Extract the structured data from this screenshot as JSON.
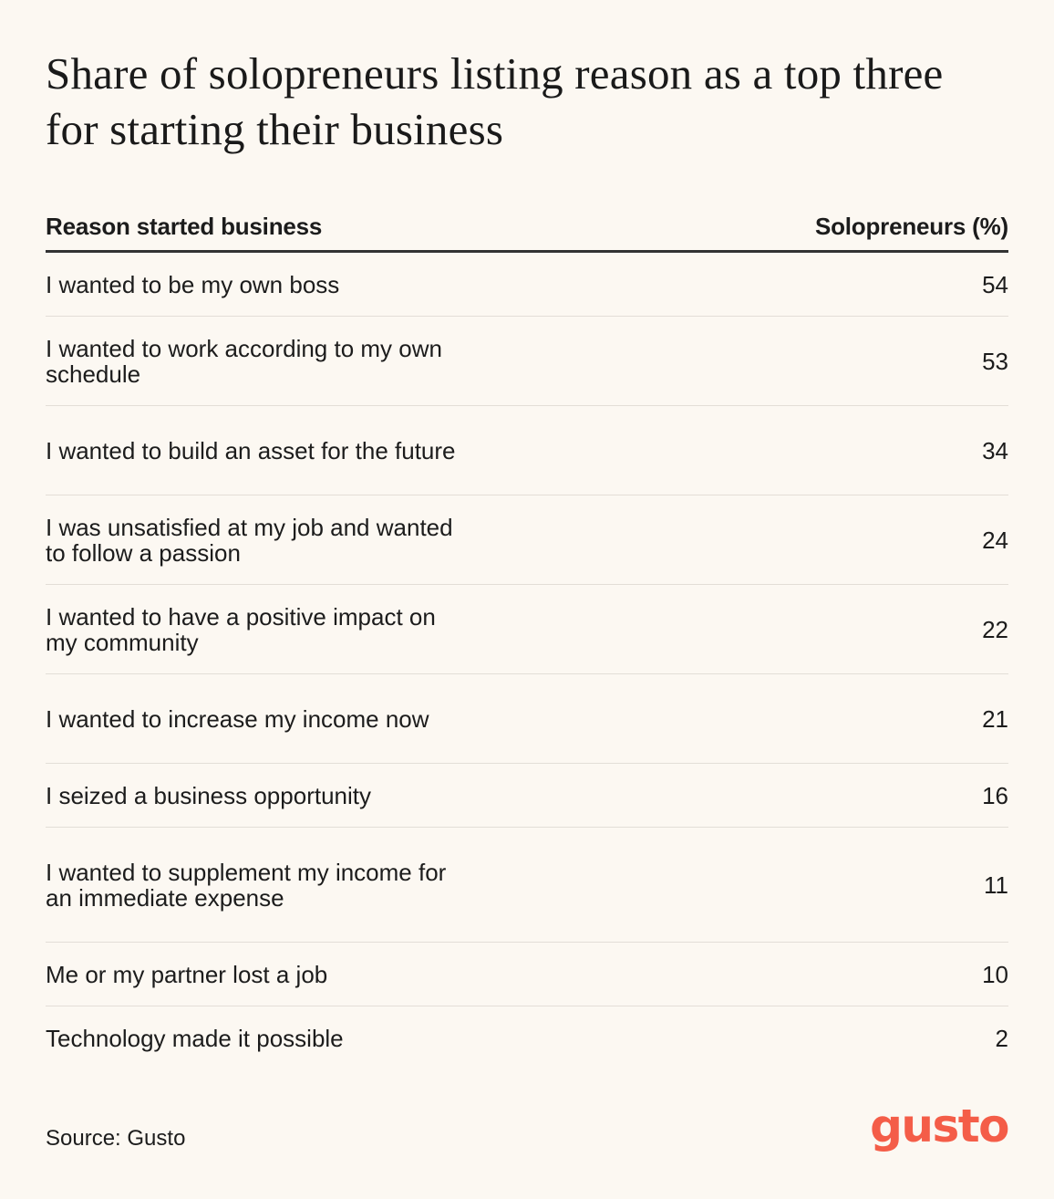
{
  "title": "Share of solopreneurs listing reason as a top three for starting their business",
  "source": "Source: Gusto",
  "logo_text": "gusto",
  "colors": {
    "background": "#fcf8f2",
    "text": "#1c1c1c",
    "brand": "#f45d48"
  },
  "chart_data": {
    "type": "table",
    "columns": [
      "Reason started business",
      "Solopreneurs (%)"
    ],
    "rows": [
      {
        "reason": "I wanted to be my own boss",
        "value": 54
      },
      {
        "reason": "I wanted to work according to my own schedule",
        "value": 53
      },
      {
        "reason": "I wanted to build an asset for the future",
        "value": 34
      },
      {
        "reason": "I was unsatisfied at my job and wanted to follow a passion",
        "value": 24
      },
      {
        "reason": "I wanted to have a positive impact on my community",
        "value": 22
      },
      {
        "reason": "I wanted to increase my income now",
        "value": 21
      },
      {
        "reason": "I seized a business opportunity",
        "value": 16
      },
      {
        "reason": "I wanted to supplement my income for an immediate expense",
        "value": 11
      },
      {
        "reason": "Me or my partner lost a job",
        "value": 10
      },
      {
        "reason": "Technology made it possible",
        "value": 2
      }
    ]
  }
}
